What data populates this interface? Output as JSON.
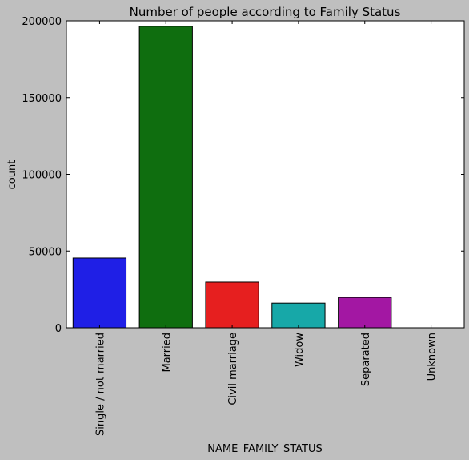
{
  "chart_data": {
    "type": "bar",
    "title": "Number of people according to Family Status",
    "xlabel": "NAME_FAMILY_STATUS",
    "ylabel": "count",
    "ylim": [
      0,
      200000
    ],
    "yticks": [
      0,
      50000,
      100000,
      150000,
      200000
    ],
    "grid": false,
    "categories": [
      "Single / not married",
      "Married",
      "Civil marriage",
      "Widow",
      "Separated",
      "Unknown"
    ],
    "values": [
      45444,
      196432,
      29775,
      16088,
      19770,
      2
    ],
    "colors": [
      "#1f1fe6",
      "#0f6e0f",
      "#e61f1f",
      "#17a8a8",
      "#a317a3",
      "#a8a817"
    ]
  }
}
